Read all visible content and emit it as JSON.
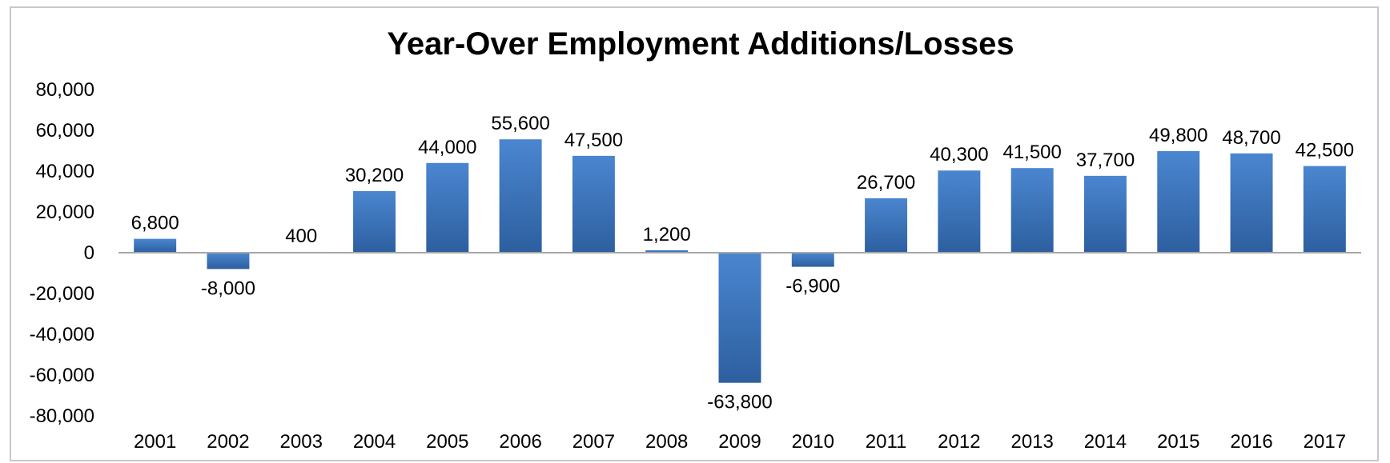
{
  "chart_data": {
    "type": "bar",
    "title": "Year-Over Employment Additions/Losses",
    "xlabel": "",
    "ylabel": "",
    "categories": [
      "2001",
      "2002",
      "2003",
      "2004",
      "2005",
      "2006",
      "2007",
      "2008",
      "2009",
      "2010",
      "2011",
      "2012",
      "2013",
      "2014",
      "2015",
      "2016",
      "2017"
    ],
    "values": [
      6800,
      -8000,
      400,
      30200,
      44000,
      55600,
      47500,
      1200,
      -63800,
      -6900,
      26700,
      40300,
      41500,
      37700,
      49800,
      48700,
      42500
    ],
    "data_labels": [
      "6,800",
      "-8,000",
      "400",
      "30,200",
      "44,000",
      "55,600",
      "47,500",
      "1,200",
      "-63,800",
      "-6,900",
      "26,700",
      "40,300",
      "41,500",
      "37,700",
      "49,800",
      "48,700",
      "42,500"
    ],
    "y_ticks": [
      "80,000",
      "60,000",
      "40,000",
      "20,000",
      "0",
      "-20,000",
      "-40,000",
      "-60,000",
      "-80,000"
    ],
    "y_tick_values": [
      80000,
      60000,
      40000,
      20000,
      0,
      -20000,
      -40000,
      -60000,
      -80000
    ],
    "ylim": [
      -80000,
      80000
    ],
    "grid": false,
    "legend": "none",
    "bar_color_top": "#4a86d0",
    "bar_color_bottom": "#2d5f9f"
  }
}
